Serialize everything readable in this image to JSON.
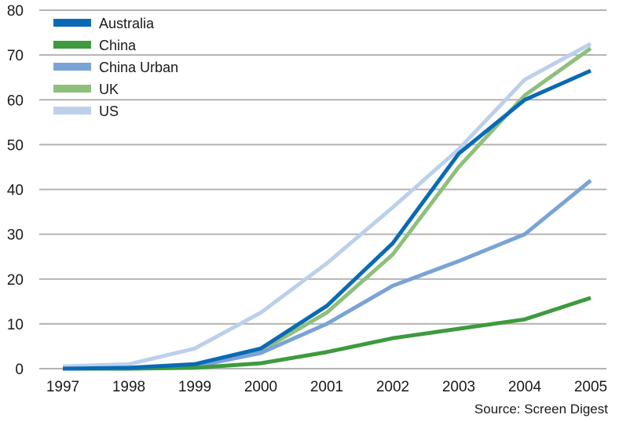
{
  "chart_data": {
    "type": "line",
    "x": [
      "1997",
      "1998",
      "1999",
      "2000",
      "2001",
      "2002",
      "2003",
      "2004",
      "2005"
    ],
    "ylim": [
      0,
      80
    ],
    "yticks": [
      0,
      10,
      20,
      30,
      40,
      50,
      60,
      70,
      80
    ],
    "grid": true,
    "legend_position": "top-left",
    "series": [
      {
        "name": "Australia",
        "color": "#0a6ab5",
        "values": [
          0,
          0.2,
          1,
          4.5,
          14,
          28,
          48,
          60,
          66.5
        ]
      },
      {
        "name": "China",
        "color": "#3e9a3e",
        "values": [
          0,
          0,
          0.2,
          1.2,
          3.7,
          6.8,
          8.9,
          11,
          15.8
        ]
      },
      {
        "name": "China Urban",
        "color": "#7aa3d6",
        "values": [
          0,
          0,
          0.5,
          3.5,
          10,
          18.5,
          24,
          30,
          42
        ]
      },
      {
        "name": "UK",
        "color": "#8ec07c",
        "values": [
          0,
          0,
          0.5,
          4,
          12.5,
          25.5,
          45,
          61,
          71.5
        ]
      },
      {
        "name": "US",
        "color": "#bcd0ec",
        "values": [
          0.5,
          1,
          4.5,
          12.5,
          23.5,
          36,
          49,
          64.5,
          72.5
        ]
      }
    ],
    "source": "Source: Screen Digest"
  }
}
